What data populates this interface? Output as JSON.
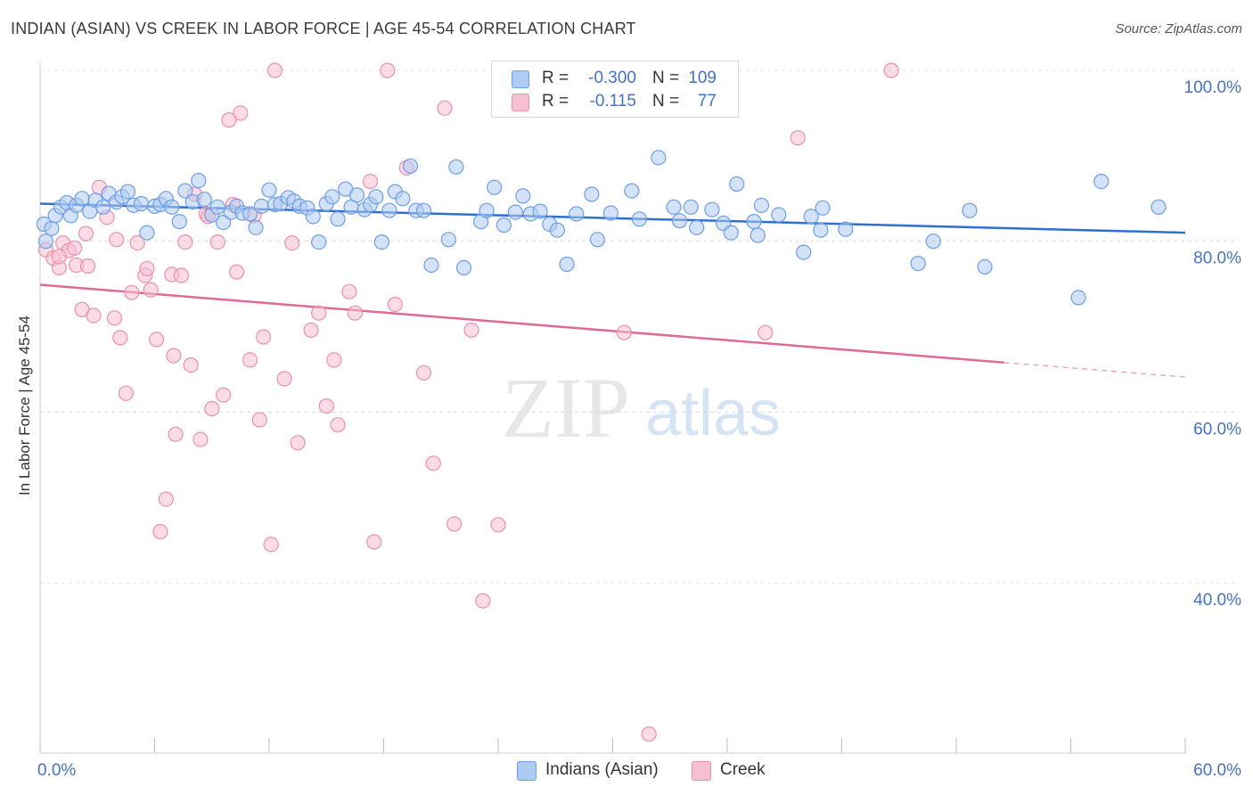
{
  "header": {
    "title": "INDIAN (ASIAN) VS CREEK IN LABOR FORCE | AGE 45-54 CORRELATION CHART",
    "source": "Source: ZipAtlas.com"
  },
  "watermark": {
    "zip": "ZIP",
    "atlas": "atlas"
  },
  "stats": [
    {
      "r_label": "R =",
      "r_value": "-0.300",
      "n_label": "N =",
      "n_value": "109"
    },
    {
      "r_label": "R =",
      "r_value": "-0.115",
      "n_label": "N =",
      "n_value": "77"
    }
  ],
  "legend": {
    "series1": "Indians (Asian)",
    "series2": "Creek"
  },
  "colors": {
    "series1_fill": "#aecbf1",
    "series1_stroke": "#6d9ee6",
    "series1_line": "#2e6fd1",
    "series2_fill": "#f7c0d1",
    "series2_stroke": "#ec8fae",
    "series2_line": "#e06a95",
    "tick_text": "#4472c4",
    "grid": "#dcdcdc"
  },
  "chart_data": {
    "type": "scatter",
    "title": "INDIAN (ASIAN) VS CREEK IN LABOR FORCE | AGE 45-54 CORRELATION CHART",
    "xlabel": "",
    "ylabel": "In Labor Force | Age 45-54",
    "xlim": [
      0,
      60
    ],
    "ylim": [
      20,
      102
    ],
    "x_tick_labels": [
      "0.0%",
      "60.0%"
    ],
    "y_ticks": [
      40,
      60,
      80,
      100
    ],
    "y_tick_labels": [
      "40.0%",
      "60.0%",
      "80.0%",
      "100.0%"
    ],
    "grid": true,
    "legend_position": "bottom-center",
    "series": [
      {
        "name": "Indians (Asian)",
        "r": -0.3,
        "n": 109,
        "trend": {
          "x": [
            0,
            60
          ],
          "y": [
            84.4,
            81.0
          ]
        },
        "points": [
          [
            0.2,
            82
          ],
          [
            0.3,
            80
          ],
          [
            0.6,
            81.5
          ],
          [
            0.8,
            83
          ],
          [
            1.1,
            84
          ],
          [
            1.4,
            84.5
          ],
          [
            1.6,
            83
          ],
          [
            1.9,
            84.2
          ],
          [
            2.2,
            85
          ],
          [
            2.6,
            83.5
          ],
          [
            2.9,
            84.8
          ],
          [
            3.3,
            84
          ],
          [
            3.6,
            85.6
          ],
          [
            4.0,
            84.6
          ],
          [
            4.3,
            85.2
          ],
          [
            4.6,
            85.8
          ],
          [
            4.9,
            84.2
          ],
          [
            5.3,
            84.4
          ],
          [
            5.6,
            81
          ],
          [
            6.0,
            84.1
          ],
          [
            6.3,
            84.3
          ],
          [
            6.6,
            85
          ],
          [
            6.9,
            84
          ],
          [
            7.3,
            82.3
          ],
          [
            7.6,
            85.9
          ],
          [
            8.0,
            84.6
          ],
          [
            8.3,
            87.1
          ],
          [
            8.6,
            84.9
          ],
          [
            9.0,
            83.1
          ],
          [
            9.3,
            84
          ],
          [
            9.6,
            82.2
          ],
          [
            10.0,
            83.4
          ],
          [
            10.3,
            84.1
          ],
          [
            10.6,
            83.3
          ],
          [
            11.0,
            83.2
          ],
          [
            11.3,
            81.6
          ],
          [
            11.6,
            84.1
          ],
          [
            12.0,
            86
          ],
          [
            12.3,
            84.3
          ],
          [
            12.6,
            84.4
          ],
          [
            13.0,
            85.1
          ],
          [
            13.3,
            84.7
          ],
          [
            13.6,
            84.1
          ],
          [
            14.0,
            83.9
          ],
          [
            14.3,
            82.9
          ],
          [
            14.6,
            79.9
          ],
          [
            15.0,
            84.4
          ],
          [
            15.3,
            85.2
          ],
          [
            15.6,
            82.6
          ],
          [
            16.0,
            86.1
          ],
          [
            16.3,
            84
          ],
          [
            16.6,
            85.4
          ],
          [
            17.0,
            83.7
          ],
          [
            17.3,
            84.3
          ],
          [
            17.6,
            85.2
          ],
          [
            17.9,
            79.9
          ],
          [
            18.3,
            83.6
          ],
          [
            18.6,
            85.8
          ],
          [
            19.0,
            85
          ],
          [
            19.4,
            88.8
          ],
          [
            19.7,
            83.6
          ],
          [
            20.1,
            83.6
          ],
          [
            20.5,
            77.2
          ],
          [
            21.4,
            80.2
          ],
          [
            21.8,
            88.7
          ],
          [
            22.2,
            76.9
          ],
          [
            23.1,
            82.3
          ],
          [
            23.4,
            83.6
          ],
          [
            23.8,
            86.3
          ],
          [
            24.3,
            81.9
          ],
          [
            24.9,
            83.4
          ],
          [
            25.3,
            85.3
          ],
          [
            25.7,
            83.2
          ],
          [
            26.2,
            83.5
          ],
          [
            26.7,
            82
          ],
          [
            27.1,
            81.3
          ],
          [
            27.6,
            77.3
          ],
          [
            28.1,
            83.2
          ],
          [
            28.9,
            85.5
          ],
          [
            29.2,
            80.2
          ],
          [
            29.9,
            83.3
          ],
          [
            31.0,
            85.9
          ],
          [
            31.4,
            82.6
          ],
          [
            32.4,
            89.8
          ],
          [
            33.2,
            84
          ],
          [
            33.5,
            82.4
          ],
          [
            34.1,
            84
          ],
          [
            34.4,
            81.6
          ],
          [
            35.2,
            83.7
          ],
          [
            35.8,
            82.1
          ],
          [
            36.2,
            81
          ],
          [
            36.5,
            86.7
          ],
          [
            37.4,
            82.3
          ],
          [
            37.6,
            80.7
          ],
          [
            37.8,
            84.2
          ],
          [
            38.7,
            83.1
          ],
          [
            40.0,
            78.7
          ],
          [
            40.4,
            82.9
          ],
          [
            40.9,
            81.3
          ],
          [
            41.0,
            83.9
          ],
          [
            42.2,
            81.4
          ],
          [
            46.0,
            77.4
          ],
          [
            46.8,
            80
          ],
          [
            48.7,
            83.6
          ],
          [
            49.5,
            77
          ],
          [
            54.4,
            73.4
          ],
          [
            55.6,
            87
          ],
          [
            58.6,
            84
          ]
        ]
      },
      {
        "name": "Creek",
        "r": -0.115,
        "n": 77,
        "trend": {
          "x": [
            0,
            50.5
          ],
          "y": [
            74.9,
            65.8
          ]
        },
        "trend_dashed": {
          "x": [
            50.5,
            60
          ],
          "y": [
            65.8,
            64.1
          ]
        },
        "points": [
          [
            0.3,
            79
          ],
          [
            0.7,
            78
          ],
          [
            1.0,
            76.9
          ],
          [
            1.2,
            79.8
          ],
          [
            1.5,
            78.9
          ],
          [
            1.9,
            77.2
          ],
          [
            2.2,
            72
          ],
          [
            2.4,
            80.9
          ],
          [
            2.8,
            71.3
          ],
          [
            3.1,
            86.3
          ],
          [
            3.5,
            82.8
          ],
          [
            3.9,
            71
          ],
          [
            4.2,
            68.7
          ],
          [
            4.5,
            62.2
          ],
          [
            4.8,
            74
          ],
          [
            5.1,
            79.8
          ],
          [
            5.5,
            76
          ],
          [
            5.8,
            74.3
          ],
          [
            6.1,
            68.5
          ],
          [
            6.3,
            46
          ],
          [
            6.6,
            49.8
          ],
          [
            6.9,
            76.1
          ],
          [
            7.1,
            57.4
          ],
          [
            7.4,
            76
          ],
          [
            7.6,
            79.9
          ],
          [
            7.9,
            65.5
          ],
          [
            8.1,
            85.5
          ],
          [
            8.4,
            56.8
          ],
          [
            8.7,
            83.2
          ],
          [
            9.0,
            60.4
          ],
          [
            9.3,
            79.9
          ],
          [
            9.6,
            62
          ],
          [
            9.9,
            94.2
          ],
          [
            10.3,
            76.4
          ],
          [
            10.5,
            95
          ],
          [
            11.0,
            66.1
          ],
          [
            11.2,
            83
          ],
          [
            11.5,
            59.1
          ],
          [
            11.7,
            68.8
          ],
          [
            12.1,
            44.5
          ],
          [
            12.3,
            100
          ],
          [
            12.8,
            63.9
          ],
          [
            13.2,
            79.8
          ],
          [
            13.5,
            56.4
          ],
          [
            14.2,
            69.6
          ],
          [
            14.6,
            71.6
          ],
          [
            15.0,
            60.7
          ],
          [
            15.4,
            66.1
          ],
          [
            15.6,
            58.5
          ],
          [
            16.2,
            74.1
          ],
          [
            16.5,
            71.6
          ],
          [
            17.3,
            87
          ],
          [
            17.5,
            44.8
          ],
          [
            18.2,
            100
          ],
          [
            18.6,
            72.6
          ],
          [
            19.2,
            88.6
          ],
          [
            20.1,
            64.6
          ],
          [
            20.6,
            54
          ],
          [
            21.2,
            95.6
          ],
          [
            21.7,
            46.9
          ],
          [
            22.6,
            69.6
          ],
          [
            23.2,
            37.9
          ],
          [
            24.0,
            46.8
          ],
          [
            26.8,
            100
          ],
          [
            30.6,
            69.3
          ],
          [
            31.9,
            22.3
          ],
          [
            38.0,
            69.3
          ],
          [
            39.7,
            92.1
          ],
          [
            44.6,
            100
          ],
          [
            1.0,
            78.2
          ],
          [
            1.8,
            79.2
          ],
          [
            2.5,
            77.1
          ],
          [
            4.0,
            80.2
          ],
          [
            5.6,
            76.8
          ],
          [
            7.0,
            66.6
          ],
          [
            8.8,
            82.9
          ],
          [
            10.1,
            84.3
          ]
        ]
      }
    ]
  }
}
